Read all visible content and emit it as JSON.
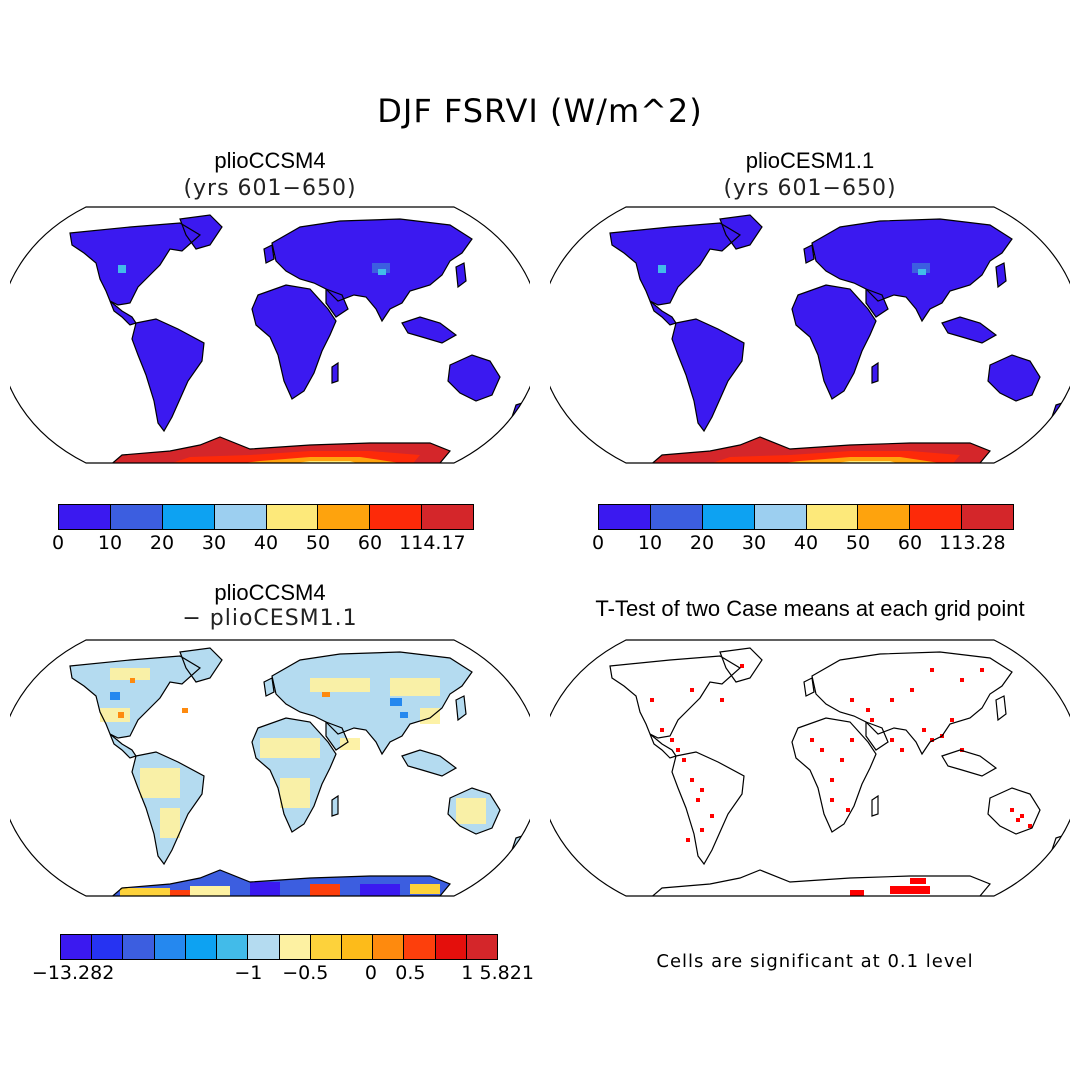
{
  "title": "DJF FSRVI (W/m^2)",
  "panels": [
    {
      "title": "plioCCSM4",
      "subtitle": "(yrs 601−650)"
    },
    {
      "title": "plioCESM1.1",
      "subtitle": "(yrs 601−650)"
    },
    {
      "title": "plioCCSM4",
      "subtitle": "− plioCESM1.1"
    },
    {
      "title": "T-Test of two Case means at each grid point",
      "subtitle": ""
    }
  ],
  "colorbars": {
    "top_left": {
      "colors": [
        "#3b19f0",
        "#3c5ee0",
        "#0da2f2",
        "#9ccff0",
        "#fde97a",
        "#fea30d",
        "#fd2a09",
        "#d4262a"
      ],
      "labels": [
        "0",
        "10",
        "20",
        "30",
        "40",
        "50",
        "60",
        "114.17"
      ]
    },
    "top_right": {
      "colors": [
        "#3b19f0",
        "#3c5ee0",
        "#0da2f2",
        "#9ccff0",
        "#fde97a",
        "#fea30d",
        "#fd2a09",
        "#d4262a"
      ],
      "labels": [
        "0",
        "10",
        "20",
        "30",
        "40",
        "50",
        "60",
        "113.28"
      ]
    },
    "diff": {
      "colors": [
        "#3b19f0",
        "#2633f2",
        "#3c5ee0",
        "#2588ef",
        "#0da2f2",
        "#42bbe9",
        "#b4dbf0",
        "#fdf1a2",
        "#fdd23b",
        "#fdbb1a",
        "#fe8a0e",
        "#fd3f0c",
        "#e40f0c",
        "#d4262a"
      ],
      "labels": [
        "−13.282",
        "−1",
        "−0.5",
        "0",
        "0.5",
        "1",
        "5.821"
      ]
    }
  },
  "note": "Cells are significant at 0.1 level"
}
